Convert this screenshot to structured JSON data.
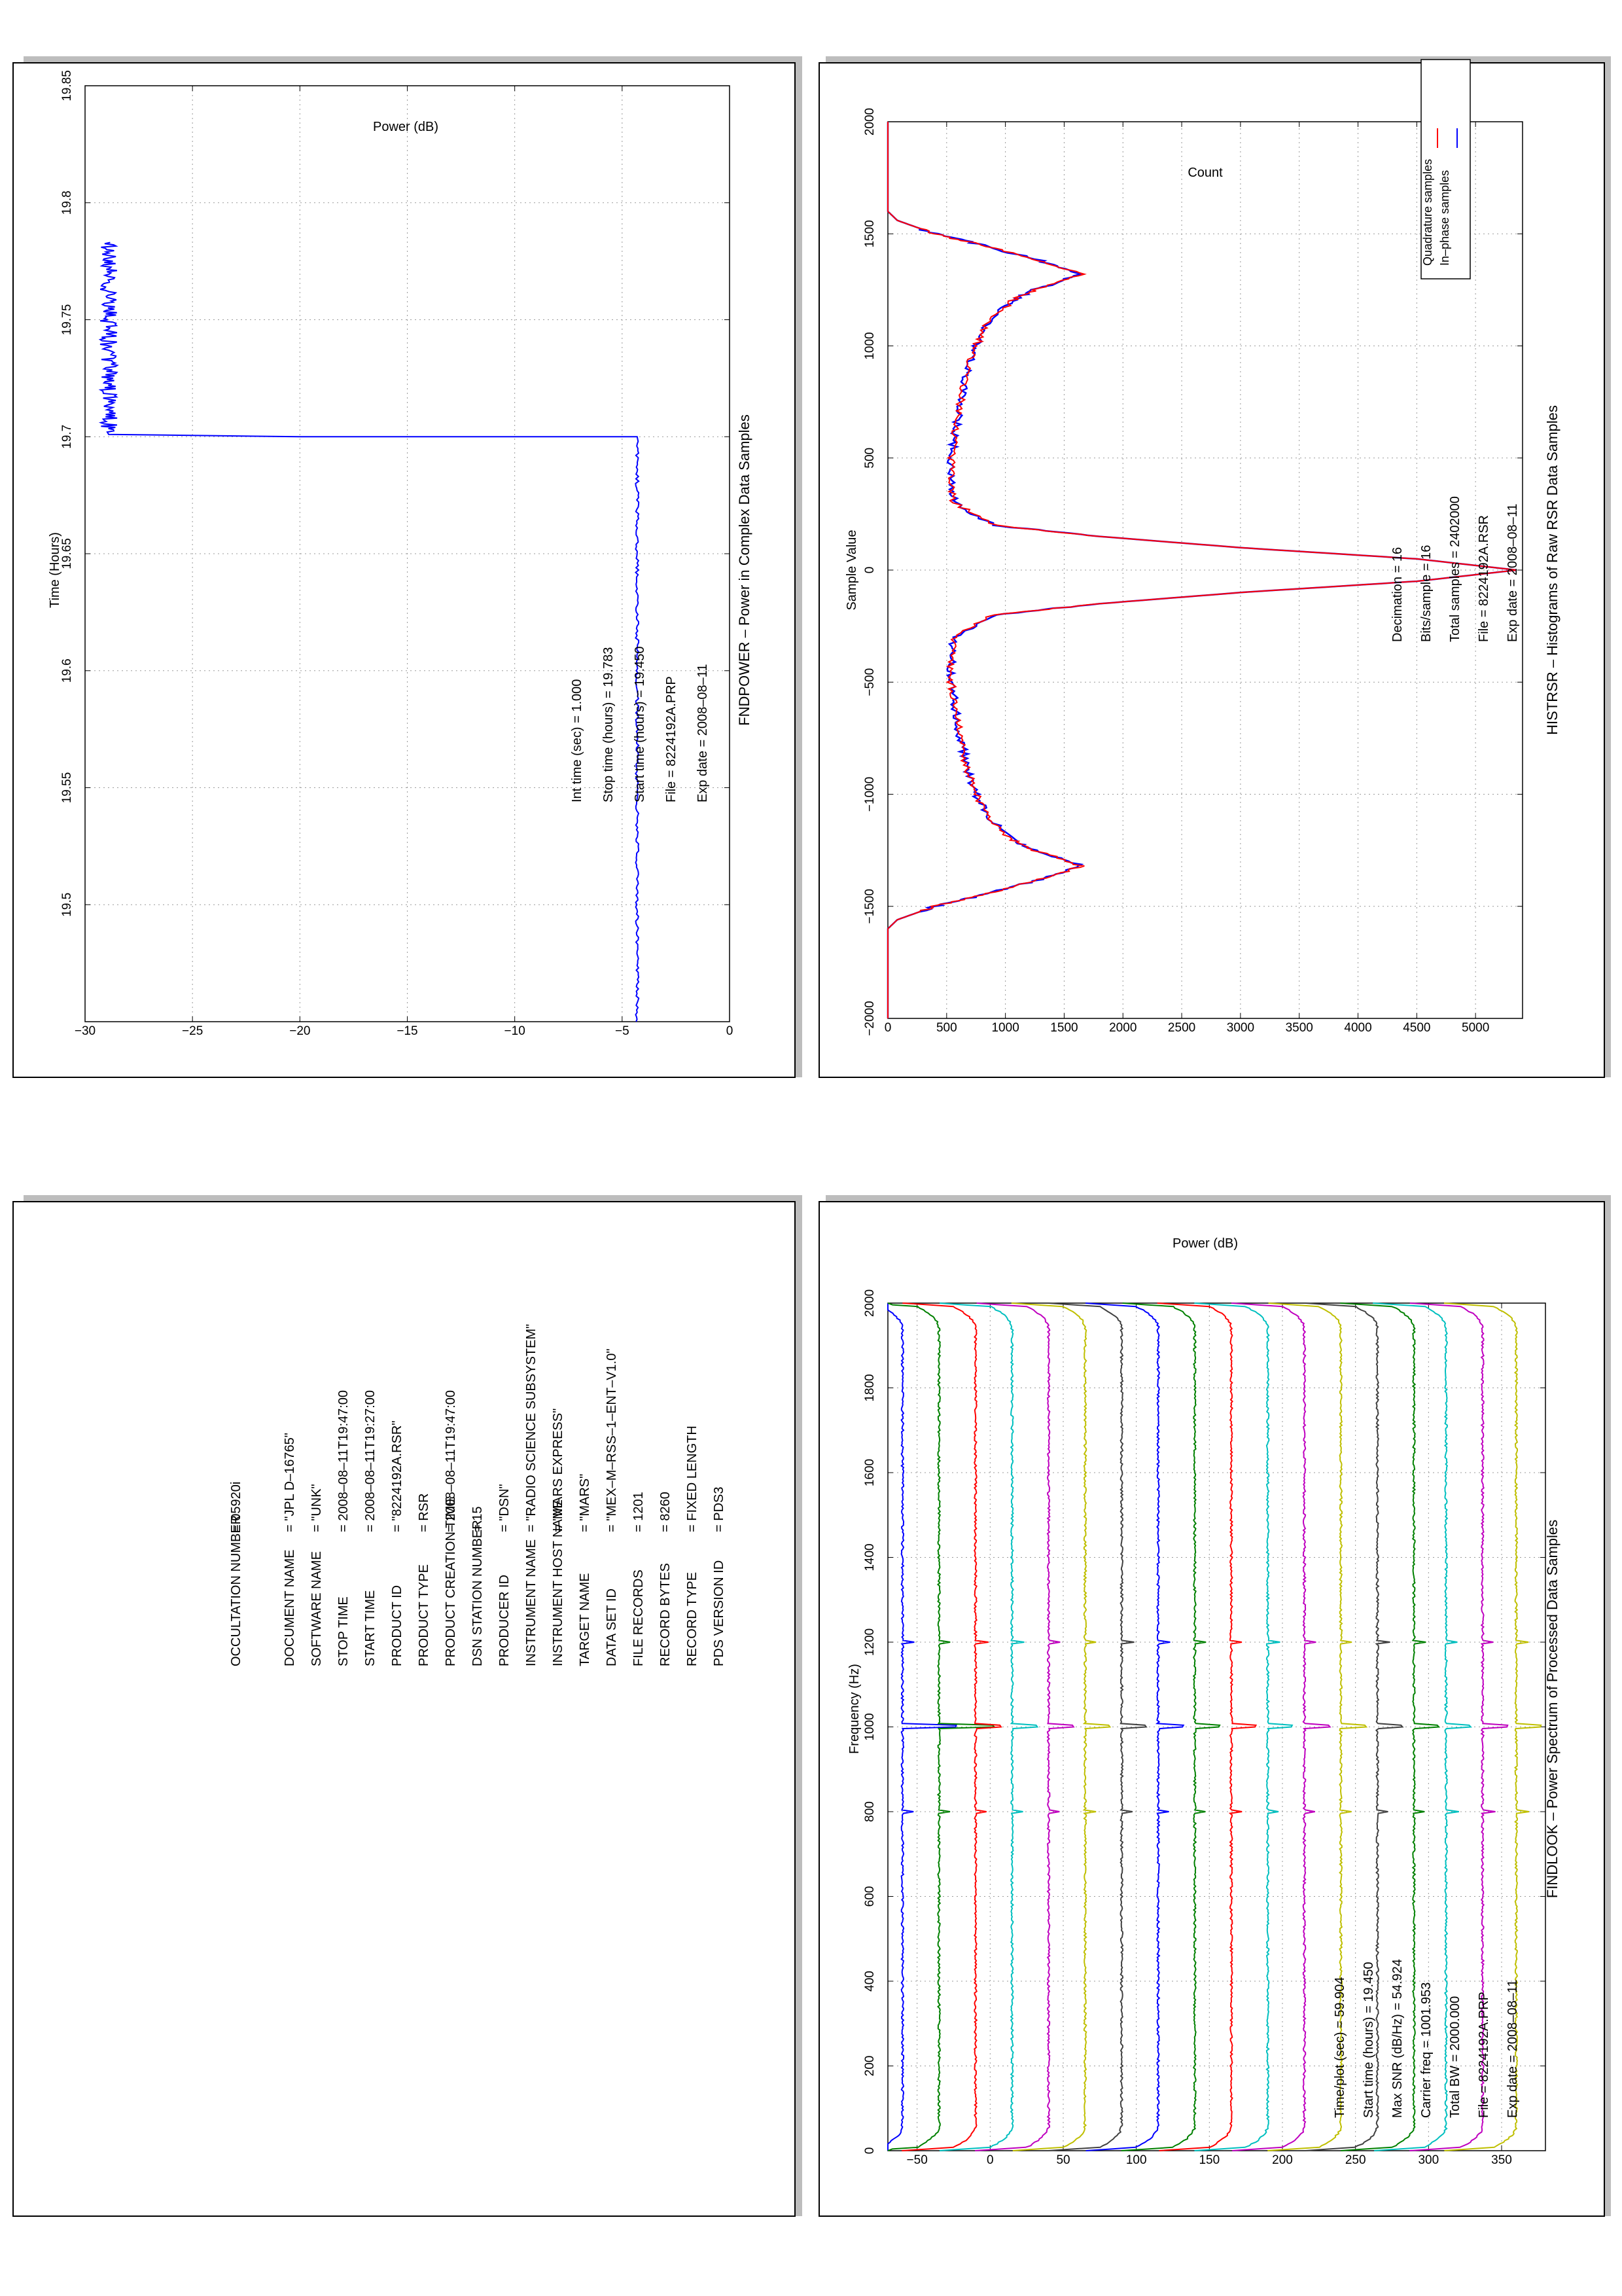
{
  "histrsr": {
    "title": "HISTRSR – Histograms of Raw RSR Data Samples",
    "xlabel": "Sample Value",
    "ylabel": "Count",
    "info": [
      "Exp date = 2008–08–11",
      "File = 8224192A.RSR",
      "Total samples =    2402000",
      "Bits/sample    =       16",
      "Decimation    =       16"
    ],
    "legend": [
      "In–phase samples",
      "Quadrature samples"
    ]
  },
  "findlook": {
    "title": "FINDLOOK – Power Spectrum of Processed Data Samples",
    "xlabel": "Frequency (Hz)",
    "ylabel": "Power (dB)",
    "info": [
      "Exp date = 2008–08–11",
      "File = 8224192A.PRP",
      "Total BW =      2000.000",
      "Carrier freq =    1001.953",
      "Max SNR (dB/Hz) =    54.924",
      "Start time (hours) =  19.450",
      "Time/plot (sec) =    59.904"
    ]
  },
  "fndpower": {
    "title": "FNDPOWER – Power in Complex Data Samples",
    "xlabel": "Time (Hours)",
    "ylabel": "Power (dB)",
    "info": [
      "Exp date = 2008–08–11",
      "File = 8224192A.PRP",
      "Start time (hours) = 19.450",
      "Stop time (hours) = 19.783",
      "Int time (sec) =      1.000"
    ]
  },
  "label": {
    "rows": [
      {
        "key": "PDS VERSION ID",
        "value": "=  PDS3"
      },
      {
        "key": "RECORD TYPE",
        "value": "=  FIXED LENGTH"
      },
      {
        "key": "RECORD BYTES",
        "value": "=  8260"
      },
      {
        "key": "FILE RECORDS",
        "value": "=  1201"
      },
      {
        "key": "DATA SET ID",
        "value": "=  \"MEX–M–RSS–1–ENT–V1.0\""
      },
      {
        "key": "TARGET NAME",
        "value": "=  \"MARS\""
      },
      {
        "key": "INSTRUMENT HOST NAME",
        "value": "=  \"MARS EXPRESS\""
      },
      {
        "key": "INSTRUMENT NAME",
        "value": "=  \"RADIO SCIENCE SUBSYSTEM\""
      },
      {
        "key": "PRODUCER ID",
        "value": "=  \"DSN\""
      },
      {
        "key": "DSN STATION NUMBER",
        "value": "=  15"
      },
      {
        "key": "PRODUCT CREATION TIME",
        "value": "=  2008–08–11T19:47:00"
      },
      {
        "key": "PRODUCT TYPE",
        "value": "=  RSR"
      },
      {
        "key": "PRODUCT ID",
        "value": "=  \"8224192A.RSR\""
      },
      {
        "key": "START TIME",
        "value": "=  2008–08–11T19:27:00"
      },
      {
        "key": "STOP TIME",
        "value": "=  2008–08–11T19:47:00"
      },
      {
        "key": "SOFTWARE NAME",
        "value": "=  \"UNK\""
      },
      {
        "key": "DOCUMENT NAME",
        "value": "=  \"JPL D–16765\""
      },
      {
        "key": "",
        "value": ""
      },
      {
        "key": "OCCULTATION NUMBER",
        "value": "=  05920i"
      }
    ]
  },
  "chart_data": [
    {
      "type": "line",
      "title": "HISTRSR – Histograms of Raw RSR Data Samples",
      "xlabel": "Sample Value",
      "ylabel": "Count",
      "xlim": [
        -2000,
        2000
      ],
      "ylim": [
        0,
        5400
      ],
      "xticks": [
        -2000,
        -1500,
        -1000,
        -500,
        0,
        500,
        1000,
        1500,
        2000
      ],
      "yticks": [
        0,
        500,
        1000,
        1500,
        2000,
        2500,
        3000,
        3500,
        4000,
        4500,
        5000
      ],
      "grid": true,
      "legend": "top-left",
      "series": [
        {
          "name": "In–phase samples",
          "color": "#0000ff",
          "x": [
            -2000,
            -1600,
            -1560,
            -1500,
            -1450,
            -1380,
            -1320,
            -1250,
            -1200,
            -1100,
            -1000,
            -900,
            -800,
            -700,
            -600,
            -500,
            -400,
            -300,
            -200,
            -150,
            -100,
            -50,
            0,
            50,
            100,
            150,
            200,
            300,
            400,
            500,
            600,
            700,
            800,
            900,
            1000,
            1100,
            1200,
            1250,
            1320,
            1380,
            1450,
            1500,
            1560,
            1600,
            2000
          ],
          "y": [
            0,
            0,
            80,
            400,
            800,
            1300,
            1650,
            1250,
            1050,
            850,
            750,
            680,
            640,
            600,
            570,
            540,
            540,
            560,
            900,
            1800,
            3000,
            4500,
            5350,
            4500,
            3000,
            1800,
            900,
            560,
            540,
            540,
            570,
            600,
            640,
            680,
            750,
            850,
            1050,
            1250,
            1650,
            1300,
            800,
            400,
            80,
            0,
            0
          ]
        },
        {
          "name": "Quadrature samples",
          "color": "#ff0000",
          "x": [
            -2000,
            -1600,
            -1560,
            -1500,
            -1450,
            -1380,
            -1320,
            -1250,
            -1200,
            -1100,
            -1000,
            -900,
            -800,
            -700,
            -600,
            -500,
            -400,
            -300,
            -200,
            -150,
            -100,
            -50,
            0,
            50,
            100,
            150,
            200,
            300,
            400,
            500,
            600,
            700,
            800,
            900,
            1000,
            1100,
            1200,
            1250,
            1320,
            1380,
            1450,
            1500,
            1560,
            1600,
            2000
          ],
          "y": [
            0,
            0,
            80,
            400,
            800,
            1300,
            1650,
            1250,
            1050,
            850,
            750,
            680,
            640,
            600,
            570,
            540,
            540,
            560,
            900,
            1800,
            3000,
            4500,
            5350,
            4500,
            3000,
            1800,
            900,
            560,
            540,
            540,
            570,
            600,
            640,
            680,
            750,
            850,
            1050,
            1250,
            1650,
            1300,
            800,
            400,
            80,
            0,
            0
          ]
        }
      ]
    },
    {
      "type": "line",
      "title": "FINDLOOK – Power Spectrum of Processed Data Samples",
      "xlabel": "Frequency (Hz)",
      "ylabel": "Power (dB)",
      "xlim": [
        0,
        2000
      ],
      "ylim": [
        -70,
        380
      ],
      "xticks": [
        0,
        200,
        400,
        600,
        800,
        1000,
        1200,
        1400,
        1600,
        1800,
        2000
      ],
      "yticks": [
        -50,
        0,
        50,
        100,
        150,
        200,
        250,
        300,
        350
      ],
      "grid": true,
      "carrier_freq": 1001.953,
      "series_colors": [
        "#0000ff",
        "#008000",
        "#ff0000",
        "#00bfbf",
        "#bf00bf",
        "#bfbf00",
        "#404040",
        "#0000ff",
        "#008000",
        "#ff0000",
        "#00bfbf",
        "#bf00bf",
        "#bfbf00",
        "#404040",
        "#008000",
        "#00bfbf",
        "#bf00bf",
        "#bfbf00"
      ],
      "series_levels_db": [
        -60,
        -35,
        -10,
        15,
        40,
        65,
        90,
        115,
        140,
        165,
        190,
        215,
        240,
        265,
        290,
        312,
        337,
        360
      ]
    },
    {
      "type": "line",
      "title": "FNDPOWER – Power in Complex Data Samples",
      "xlabel": "Time (Hours)",
      "ylabel": "Power (dB)",
      "xlim": [
        19.45,
        19.85
      ],
      "ylim": [
        -30,
        0
      ],
      "xticks": [
        19.5,
        19.55,
        19.6,
        19.65,
        19.7,
        19.75,
        19.8,
        19.85
      ],
      "yticks": [
        -30,
        -25,
        -20,
        -15,
        -10,
        -5,
        0
      ],
      "grid": true,
      "series": [
        {
          "color": "#0000ff",
          "x": [
            19.45,
            19.699,
            19.7,
            19.701,
            19.783
          ],
          "y": [
            -4.3,
            -4.3,
            -20,
            -28.9,
            -28.9
          ]
        }
      ]
    }
  ]
}
